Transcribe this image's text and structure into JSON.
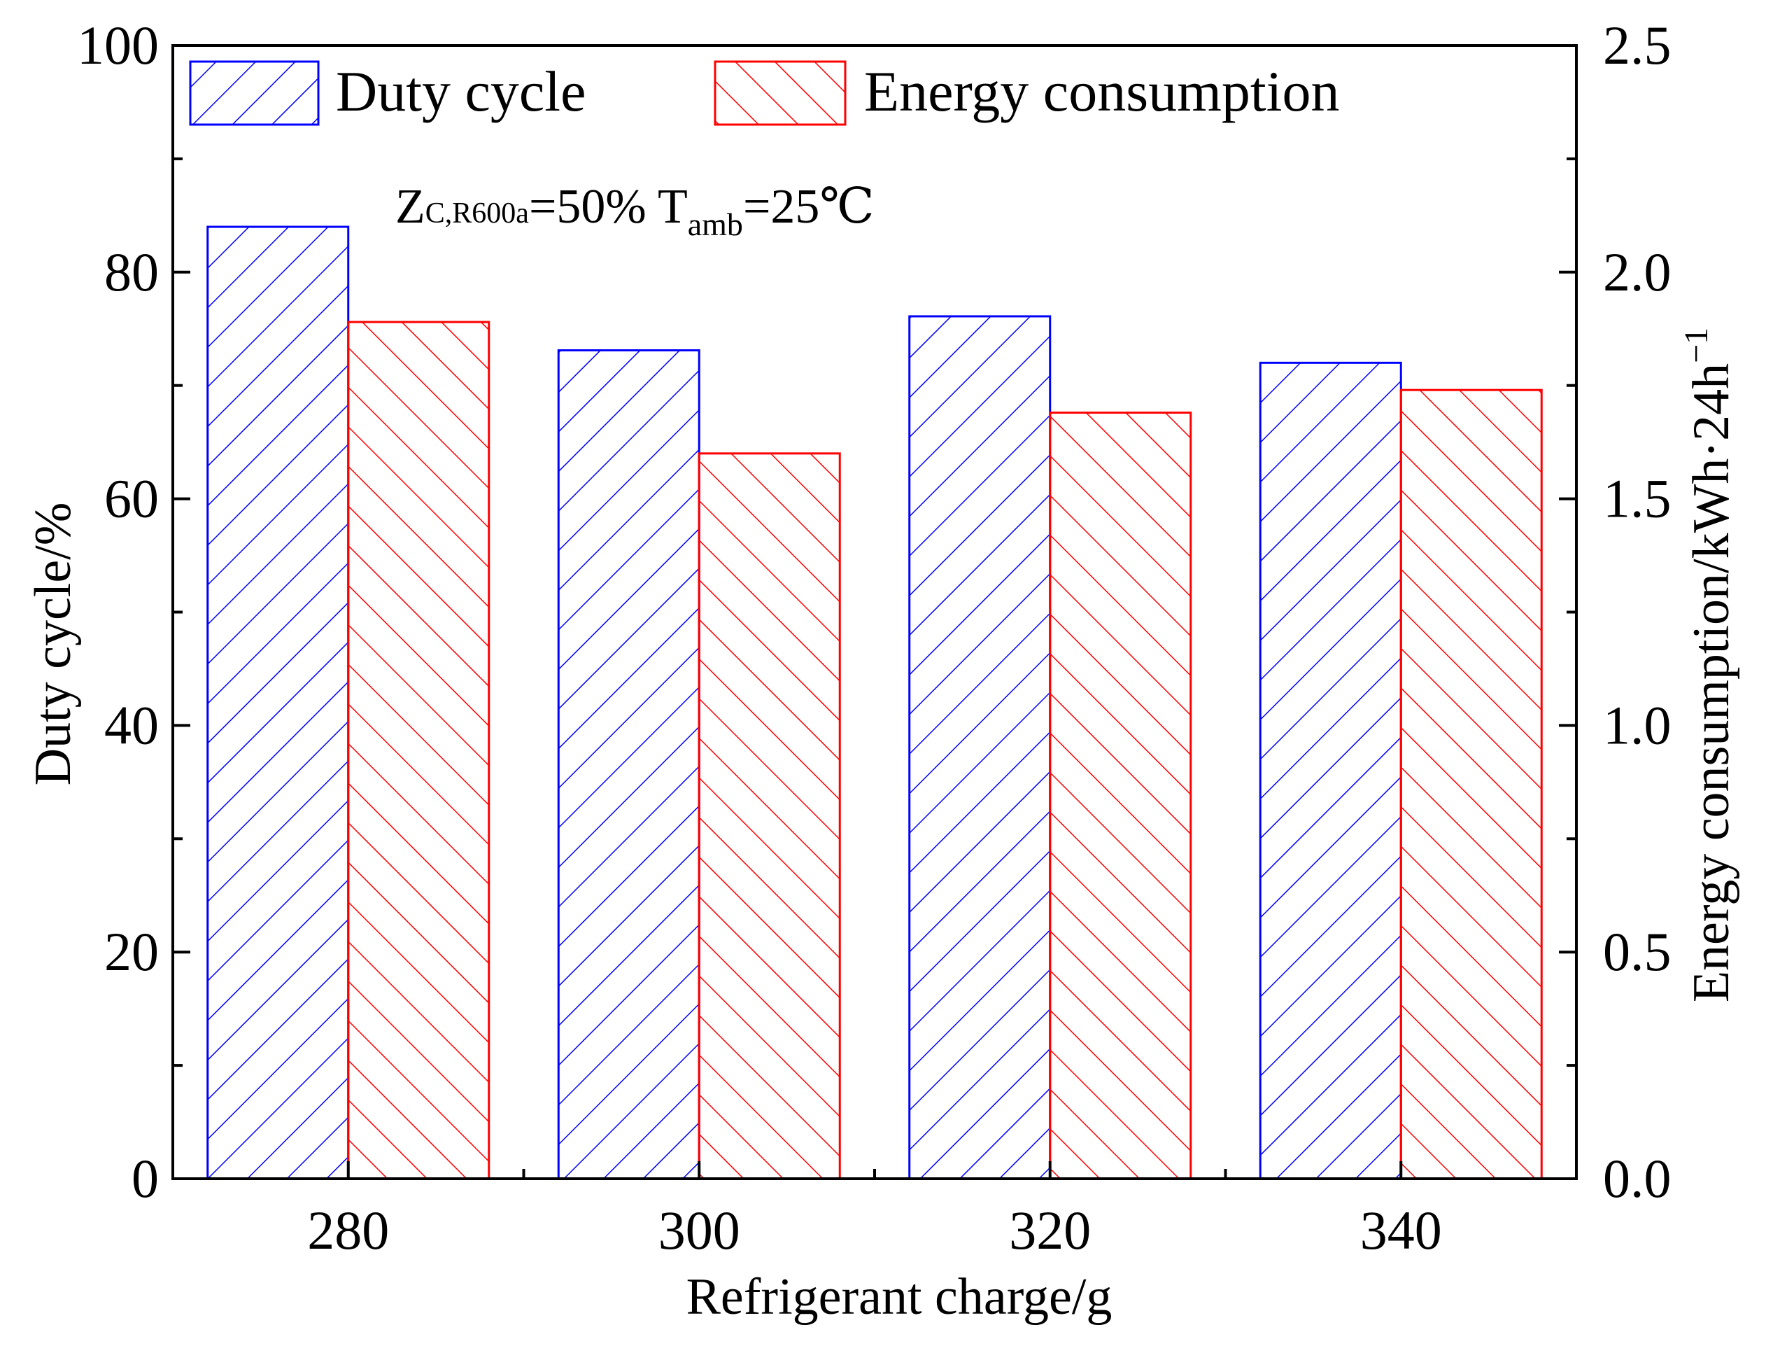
{
  "chart_data": {
    "type": "bar",
    "xlabel": "Refrigerant charge/g",
    "ylabel": "Duty cycle/%",
    "y2label": "Energy consumption/kWh·24h",
    "y2label_sup": "−1",
    "categories": [
      "280",
      "300",
      "320",
      "340"
    ],
    "x_values": [
      280,
      300,
      320,
      340
    ],
    "xlim": [
      270,
      350
    ],
    "ylim": [
      0,
      100
    ],
    "y2lim": [
      0,
      2.5
    ],
    "yticks": [
      "0",
      "20",
      "40",
      "60",
      "80",
      "100"
    ],
    "y2ticks": [
      "0.0",
      "0.5",
      "1.0",
      "1.5",
      "2.0",
      "2.5"
    ],
    "series": [
      {
        "name": "Duty cycle",
        "axis": "left",
        "values": [
          84.0,
          73.1,
          76.1,
          72.0
        ],
        "color": "#0000ff",
        "hatch": "forward-diagonal"
      },
      {
        "name": "Energy consumption",
        "axis": "right",
        "values": [
          1.89,
          1.6,
          1.69,
          1.74
        ],
        "color": "#ff0000",
        "hatch": "back-diagonal"
      }
    ],
    "annotation": {
      "z": "Z",
      "z_sub": "C,R600a",
      "mid": "=50% T",
      "t_sub": "amb",
      "end": "=25℃"
    },
    "legend_position": "top",
    "grid": false
  }
}
